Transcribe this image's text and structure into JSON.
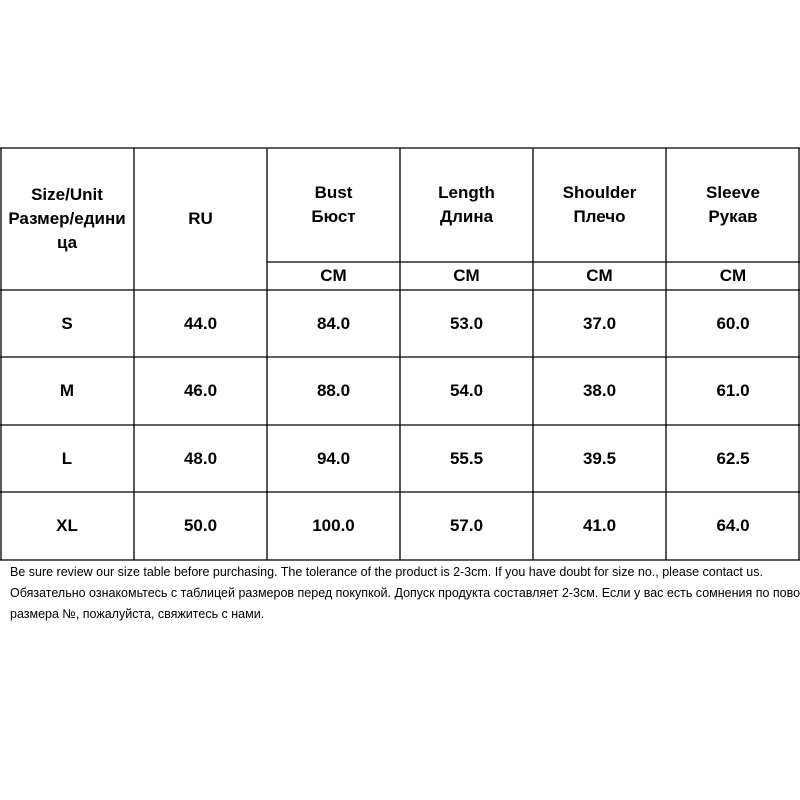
{
  "table": {
    "header": [
      [
        "Size/Unit",
        "Размер/едини",
        "ца"
      ],
      [
        "RU"
      ],
      [
        "Bust",
        "Бюст"
      ],
      [
        "Length",
        "Длина"
      ],
      [
        "Shoulder",
        "Плечо"
      ],
      [
        "Sleeve",
        "Рукав"
      ]
    ],
    "units": [
      "CM",
      "CM",
      "CM",
      "CM"
    ],
    "rows": [
      [
        "S",
        "44.0",
        "84.0",
        "53.0",
        "37.0",
        "60.0"
      ],
      [
        "M",
        "46.0",
        "88.0",
        "54.0",
        "38.0",
        "61.0"
      ],
      [
        "L",
        "48.0",
        "94.0",
        "55.5",
        "39.5",
        "62.5"
      ],
      [
        "XL",
        "50.0",
        "100.0",
        "57.0",
        "41.0",
        "64.0"
      ]
    ]
  },
  "notes": [
    "Be sure review our size table before purchasing. The tolerance of the product is 2-3cm. If you have doubt for size no., please contact us.",
    "Обязательно ознакомьтесь с таблицей размеров перед покупкой. Допуск продукта составляет 2-3см. Если у вас есть сомнения по поводу",
    "размера №, пожалуйста, свяжитесь с нами."
  ]
}
